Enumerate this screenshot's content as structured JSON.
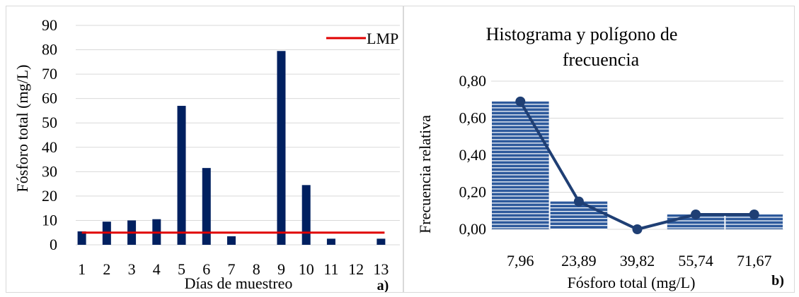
{
  "chart_data": [
    {
      "type": "bar",
      "categories": [
        "1",
        "2",
        "3",
        "4",
        "5",
        "6",
        "7",
        "8",
        "9",
        "10",
        "11",
        "12",
        "13"
      ],
      "series": [
        {
          "values": [
            5.5,
            9.5,
            10,
            10.5,
            57,
            31.5,
            3.5,
            0,
            79.5,
            24.5,
            2.5,
            0,
            2.5
          ],
          "color": "#002060"
        },
        {
          "name": "LMP",
          "type": "line",
          "values": [
            5,
            5,
            5,
            5,
            5,
            5,
            5,
            5,
            5,
            5,
            5,
            5,
            5
          ],
          "color": "#e00000"
        }
      ],
      "title": "",
      "xlabel": "Días de muestreo",
      "ylabel": "Fósforo total (mg/L)",
      "ylim": [
        0,
        90
      ],
      "yticks": [
        "0",
        "10",
        "20",
        "30",
        "40",
        "50",
        "60",
        "70",
        "80",
        "90"
      ],
      "grid": true,
      "legend": "top-right",
      "panel_label": "a)"
    },
    {
      "type": "bar",
      "categories": [
        "7,96",
        "23,89",
        "39,82",
        "55,74",
        "71,67"
      ],
      "series": [
        {
          "name": "Frecuencia relativa",
          "type": "bar",
          "values": [
            0.69,
            0.15,
            0.0,
            0.08,
            0.08
          ],
          "color": "#2e5a9c"
        },
        {
          "type": "line",
          "values": [
            0.69,
            0.15,
            0.0,
            0.08,
            0.08
          ],
          "color": "#1f3f74"
        }
      ],
      "title": "Histograma y polígono de frecuencia",
      "title_lines": [
        "Histograma y polígono de",
        "frecuencia"
      ],
      "xlabel": "Fósforo total (mg/L)",
      "ylabel": "Frecuencia relativa",
      "ylim": [
        0,
        0.8
      ],
      "yticks": [
        "0,00",
        "0,20",
        "0,40",
        "0,60",
        "0,80"
      ],
      "grid": true,
      "panel_label": "b)"
    }
  ]
}
